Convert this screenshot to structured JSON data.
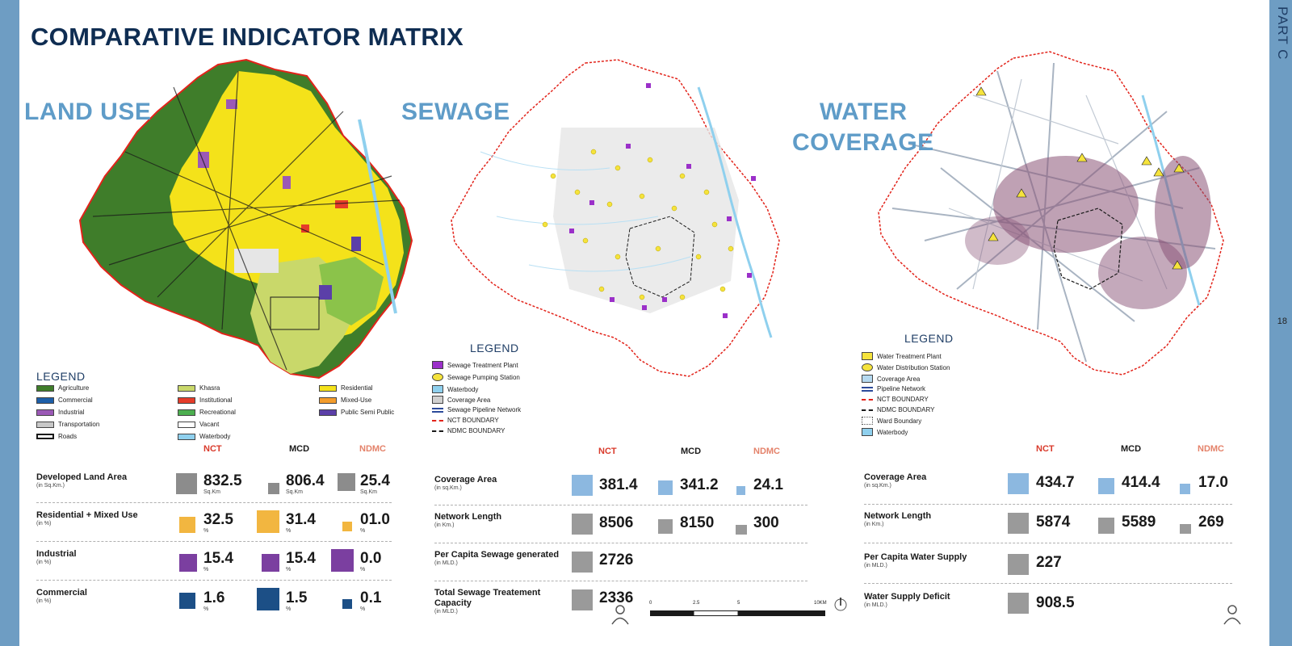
{
  "page": {
    "title": "COMPARATIVE INDICATOR MATRIX",
    "part": "PART C",
    "page_number": "18"
  },
  "columns": {
    "nct": "NCT",
    "mcd": "MCD",
    "ndmc": "NDMC"
  },
  "colors": {
    "nct": "#d93a2b",
    "mcd": "#1a1a1a",
    "ndmc": "#e4826a",
    "section_title": "#5f9cc8",
    "title": "#0f2d52"
  },
  "land_use": {
    "title": "LAND USE",
    "legend_title": "LEGEND",
    "legend": [
      {
        "label": "Agriculture",
        "color": "#3f7d2a"
      },
      {
        "label": "Commercial",
        "color": "#1d5fa8"
      },
      {
        "label": "Industrial",
        "color": "#9b59b6"
      },
      {
        "label": "Transportation",
        "color": "#c8c8c8"
      },
      {
        "label": "Roads",
        "color": "line"
      },
      {
        "label": "Khasra",
        "color": "#c9d86a"
      },
      {
        "label": "Institutional",
        "color": "#e53c2a"
      },
      {
        "label": "Recreational",
        "color": "#4caf50"
      },
      {
        "label": "Vacant",
        "color": "#ffffff"
      },
      {
        "label": "Waterbody",
        "color": "#8fd0ee"
      },
      {
        "label": "Residential",
        "color": "#f4e21a"
      },
      {
        "label": "Mixed-Use",
        "color": "#f39c2b"
      },
      {
        "label": "Public Semi Public",
        "color": "#5b3fa8"
      }
    ],
    "rows": [
      {
        "label": "Developed Land Area",
        "unit": "(in Sq.Km.)",
        "nct": "832.5",
        "mcd": "806.4",
        "ndmc": "25.4",
        "vunit": "Sq.Km",
        "icon": "building-icon"
      },
      {
        "label": "Residential + Mixed Use",
        "unit": "(in %)",
        "nct": "32.5",
        "mcd": "31.4",
        "ndmc": "01.0",
        "vunit": "%",
        "icon": "house-icon"
      },
      {
        "label": "Industrial",
        "unit": "(in %)",
        "nct": "15.4",
        "mcd": "15.4",
        "ndmc": "0.0",
        "vunit": "%",
        "icon": "factory-icon"
      },
      {
        "label": "Commercial",
        "unit": "(in %)",
        "nct": "1.6",
        "mcd": "1.5",
        "ndmc": "0.1",
        "vunit": "%",
        "icon": "shop-icon"
      }
    ]
  },
  "sewage": {
    "title": "SEWAGE",
    "legend_title": "LEGEND",
    "legend": [
      {
        "label": "Sewage Treatment Plant"
      },
      {
        "label": "Sewage Pumping Station"
      },
      {
        "label": "Waterbody"
      },
      {
        "label": "Coverage Area"
      },
      {
        "label": "Sewage Pipeline Network"
      },
      {
        "label": "NCT BOUNDARY"
      },
      {
        "label": "NDMC BOUNDARY"
      }
    ],
    "rows": [
      {
        "label": "Coverage Area",
        "unit": "(in sq.Km.)",
        "nct": "381.4",
        "mcd": "341.2",
        "ndmc": "24.1",
        "icon": "drop-icon"
      },
      {
        "label": "Network Length",
        "unit": "(in Km.)",
        "nct": "8506",
        "mcd": "8150",
        "ndmc": "300",
        "icon": "pipe-icon"
      },
      {
        "label": "Per Capita Sewage generated",
        "unit": "(in MLD.)",
        "nct": "2726",
        "icon": "pipe-icon"
      },
      {
        "label": "Total Sewage Treatement Capacity",
        "unit": "(in MLD.)",
        "nct": "2336",
        "icon": "pipe-icon"
      }
    ],
    "scale": [
      "0",
      "2.5",
      "5",
      "10KM"
    ]
  },
  "water": {
    "title": "WATER COVERAGE",
    "title_line1": "WATER",
    "title_line2": "COVERAGE",
    "legend_title": "LEGEND",
    "legend": [
      {
        "label": "Water Treatment Plant"
      },
      {
        "label": "Water Distribution Station"
      },
      {
        "label": "Coverage Area"
      },
      {
        "label": "Pipeline Network"
      },
      {
        "label": "NCT BOUNDARY"
      },
      {
        "label": "NDMC BOUNDARY"
      },
      {
        "label": "Ward Boundary"
      },
      {
        "label": "Waterbody"
      }
    ],
    "rows": [
      {
        "label": "Coverage Area",
        "unit": "(in sq.Km.)",
        "nct": "434.7",
        "mcd": "414.4",
        "ndmc": "17.0",
        "icon": "drop-icon"
      },
      {
        "label": "Network Length",
        "unit": "(in Km.)",
        "nct": "5874",
        "mcd": "5589",
        "ndmc": "269",
        "icon": "pipe-icon"
      },
      {
        "label": "Per Capita Water Supply",
        "unit": "(in MLD.)",
        "nct": "227",
        "icon": "pipe-icon"
      },
      {
        "label": "Water Supply Deficit",
        "unit": "(in MLD.)",
        "nct": "908.5",
        "icon": "pipe-icon"
      }
    ]
  }
}
